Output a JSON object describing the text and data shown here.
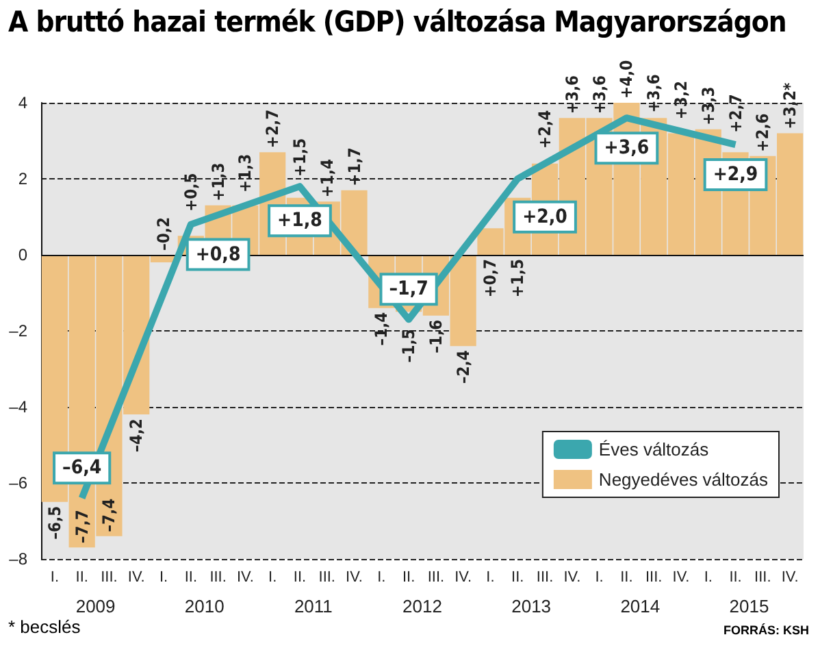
{
  "chart_data": {
    "type": "bar",
    "title": "A bruttó hazai termék (GDP) változása Magyarországon",
    "annotations": [
      "2009",
      "2010",
      "2011",
      "2012",
      "2013",
      "2014",
      "2015",
      "* becslés",
      "FORRÁS: KSH"
    ],
    "categories": [
      "I.",
      "II.",
      "III.",
      "IV.",
      "I.",
      "II.",
      "III.",
      "IV.",
      "I.",
      "II.",
      "III.",
      "IV.",
      "I.",
      "II.",
      "III.",
      "IV.",
      "I.",
      "II.",
      "III.",
      "IV.",
      "I.",
      "II.",
      "III.",
      "IV.",
      "I.",
      "II.",
      "III.",
      "IV."
    ],
    "ylim": [
      -8,
      4
    ],
    "yticks": [
      {
        "value": -8,
        "label": "–8"
      },
      {
        "value": -6,
        "label": "–6"
      },
      {
        "value": -4,
        "label": "–4"
      },
      {
        "value": -2,
        "label": "–2"
      },
      0,
      2,
      4
    ],
    "grid": "y",
    "legend": "bottom right",
    "series": [
      {
        "name": "Negyedéves változás",
        "color": "#efc282",
        "values": [
          -6.5,
          -7.7,
          -7.4,
          -4.2,
          -0.2,
          0.5,
          1.3,
          1.3,
          2.7,
          1.5,
          1.4,
          1.7,
          -1.4,
          -1.5,
          -1.6,
          -2.4,
          0.7,
          1.5,
          2.4,
          3.6,
          3.6,
          4.0,
          3.6,
          3.2,
          3.3,
          2.7,
          2.6,
          3.2
        ],
        "value_labels": [
          "–6,5",
          "–7,7",
          "–7,4",
          "–4,2",
          "–0,2",
          "+0,5",
          "+1,3",
          "+1,3",
          "+2,7",
          "+1,5",
          "+1,4",
          "+1,7",
          "–1,4",
          "–1,5",
          "–1,6",
          "–2,4",
          "+0,7",
          "+1,5",
          "+2,4",
          "+3,6",
          "+3,6",
          "+4,0",
          "+3,6",
          "+3,2",
          "+3,3",
          "+2,7",
          "+2,6",
          "+3,2*"
        ]
      },
      {
        "type": "line",
        "name": "Éves változás",
        "color": "#3ba7ae",
        "values": [
          null,
          -6.4,
          null,
          null,
          null,
          0.8,
          null,
          null,
          null,
          1.8,
          null,
          null,
          null,
          -1.7,
          null,
          null,
          null,
          2.0,
          null,
          null,
          null,
          3.6,
          null,
          null,
          null,
          2.9,
          null,
          null
        ],
        "value_labels": [
          null,
          "–6,4",
          null,
          null,
          null,
          "+0,8",
          null,
          null,
          null,
          "+1,8",
          null,
          null,
          null,
          "–1,7",
          null,
          null,
          null,
          "+2,0",
          null,
          null,
          null,
          "+3,6",
          null,
          null,
          null,
          "+2,9",
          null,
          null
        ]
      }
    ]
  }
}
